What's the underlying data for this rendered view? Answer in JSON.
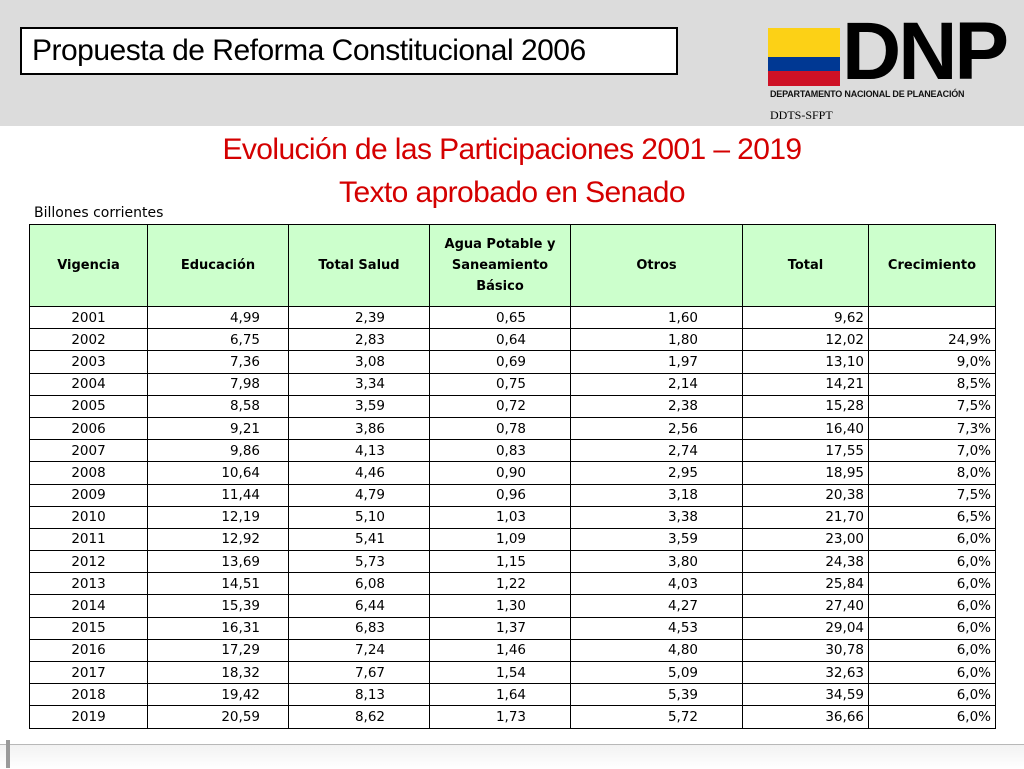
{
  "header": {
    "title": "Propuesta de Reforma Constitucional 2006",
    "logo_text": "DNP",
    "logo_subtitle": "DEPARTAMENTO NACIONAL DE PLANEACIÓN",
    "logo_unit": "DDTS-SFPT",
    "flag_colors": [
      "#fcd116",
      "#003893",
      "#ce1126"
    ]
  },
  "heading": {
    "line1": "Evolución de las Participaciones 2001 – 2019",
    "line2": "Texto aprobado en Senado",
    "color": "#d40000"
  },
  "units_label": "Billones corrientes",
  "table": {
    "header_color": "#ccffcc",
    "columns": [
      "Vigencia",
      "Educación",
      "Total Salud",
      "Agua Potable y Saneamiento Básico",
      "Otros",
      "Total",
      "Crecimiento"
    ],
    "rows": [
      [
        "2001",
        "4,99",
        "2,39",
        "0,65",
        "1,60",
        "9,62",
        ""
      ],
      [
        "2002",
        "6,75",
        "2,83",
        "0,64",
        "1,80",
        "12,02",
        "24,9%"
      ],
      [
        "2003",
        "7,36",
        "3,08",
        "0,69",
        "1,97",
        "13,10",
        "9,0%"
      ],
      [
        "2004",
        "7,98",
        "3,34",
        "0,75",
        "2,14",
        "14,21",
        "8,5%"
      ],
      [
        "2005",
        "8,58",
        "3,59",
        "0,72",
        "2,38",
        "15,28",
        "7,5%"
      ],
      [
        "2006",
        "9,21",
        "3,86",
        "0,78",
        "2,56",
        "16,40",
        "7,3%"
      ],
      [
        "2007",
        "9,86",
        "4,13",
        "0,83",
        "2,74",
        "17,55",
        "7,0%"
      ],
      [
        "2008",
        "10,64",
        "4,46",
        "0,90",
        "2,95",
        "18,95",
        "8,0%"
      ],
      [
        "2009",
        "11,44",
        "4,79",
        "0,96",
        "3,18",
        "20,38",
        "7,5%"
      ],
      [
        "2010",
        "12,19",
        "5,10",
        "1,03",
        "3,38",
        "21,70",
        "6,5%"
      ],
      [
        "2011",
        "12,92",
        "5,41",
        "1,09",
        "3,59",
        "23,00",
        "6,0%"
      ],
      [
        "2012",
        "13,69",
        "5,73",
        "1,15",
        "3,80",
        "24,38",
        "6,0%"
      ],
      [
        "2013",
        "14,51",
        "6,08",
        "1,22",
        "4,03",
        "25,84",
        "6,0%"
      ],
      [
        "2014",
        "15,39",
        "6,44",
        "1,30",
        "4,27",
        "27,40",
        "6,0%"
      ],
      [
        "2015",
        "16,31",
        "6,83",
        "1,37",
        "4,53",
        "29,04",
        "6,0%"
      ],
      [
        "2016",
        "17,29",
        "7,24",
        "1,46",
        "4,80",
        "30,78",
        "6,0%"
      ],
      [
        "2017",
        "18,32",
        "7,67",
        "1,54",
        "5,09",
        "32,63",
        "6,0%"
      ],
      [
        "2018",
        "19,42",
        "8,13",
        "1,64",
        "5,39",
        "34,59",
        "6,0%"
      ],
      [
        "2019",
        "20,59",
        "8,62",
        "1,73",
        "5,72",
        "36,66",
        "6,0%"
      ]
    ]
  }
}
